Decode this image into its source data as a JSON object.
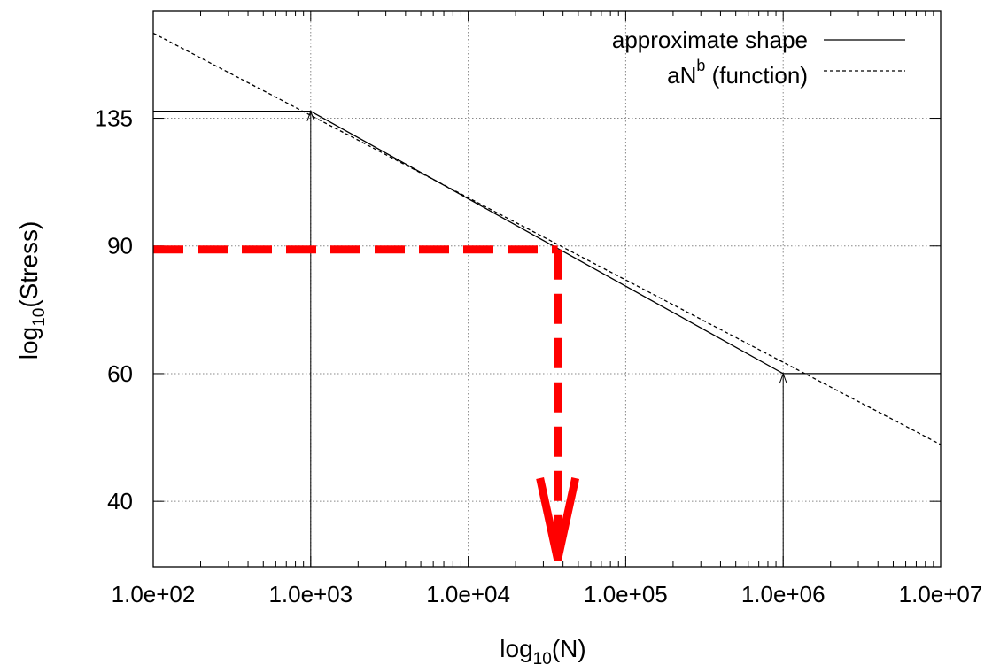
{
  "chart_data": {
    "type": "line",
    "xlabel": "log",
    "xlabel_sub": "10",
    "xlabel_tail": "(N)",
    "ylabel": "log",
    "ylabel_sub": "10",
    "ylabel_tail": "(Stress)",
    "x_scale": "log",
    "y_scale": "log",
    "xlim": [
      100,
      10000000
    ],
    "ylim": [
      32.5,
      190
    ],
    "grid": true,
    "legend_position": "top-right",
    "x_ticks": [
      {
        "value": 100,
        "label": "1.0e+02"
      },
      {
        "value": 1000,
        "label": "1.0e+03"
      },
      {
        "value": 10000,
        "label": "1.0e+04"
      },
      {
        "value": 100000,
        "label": "1.0e+05"
      },
      {
        "value": 1000000,
        "label": "1.0e+06"
      },
      {
        "value": 10000000,
        "label": "1.0e+07"
      }
    ],
    "y_ticks": [
      {
        "value": 40,
        "label": "40"
      },
      {
        "value": 60,
        "label": "60"
      },
      {
        "value": 90,
        "label": "90"
      },
      {
        "value": 135,
        "label": "135"
      }
    ],
    "series": [
      {
        "name": "approximate shape",
        "style": "solid",
        "color": "#000000",
        "points": [
          [
            100,
            138
          ],
          [
            1000,
            138
          ],
          [
            1000000,
            60
          ],
          [
            10000000,
            60
          ]
        ]
      },
      {
        "name_main": "aN",
        "name_sup": "b",
        "name_tail": " (function)",
        "style": "dashed",
        "color": "#000000",
        "points": [
          [
            100,
            176.88
          ],
          [
            10000000,
            47.91
          ]
        ]
      }
    ],
    "annotations": {
      "vertical_arrows": [
        {
          "x": 1000,
          "from_y": 32.5,
          "to_y": 138
        },
        {
          "x": 1000000,
          "from_y": 32.5,
          "to_y": 60
        }
      ],
      "highlight": {
        "color": "#ff0000",
        "y": 89,
        "x": 37000,
        "description_none": ""
      }
    }
  }
}
